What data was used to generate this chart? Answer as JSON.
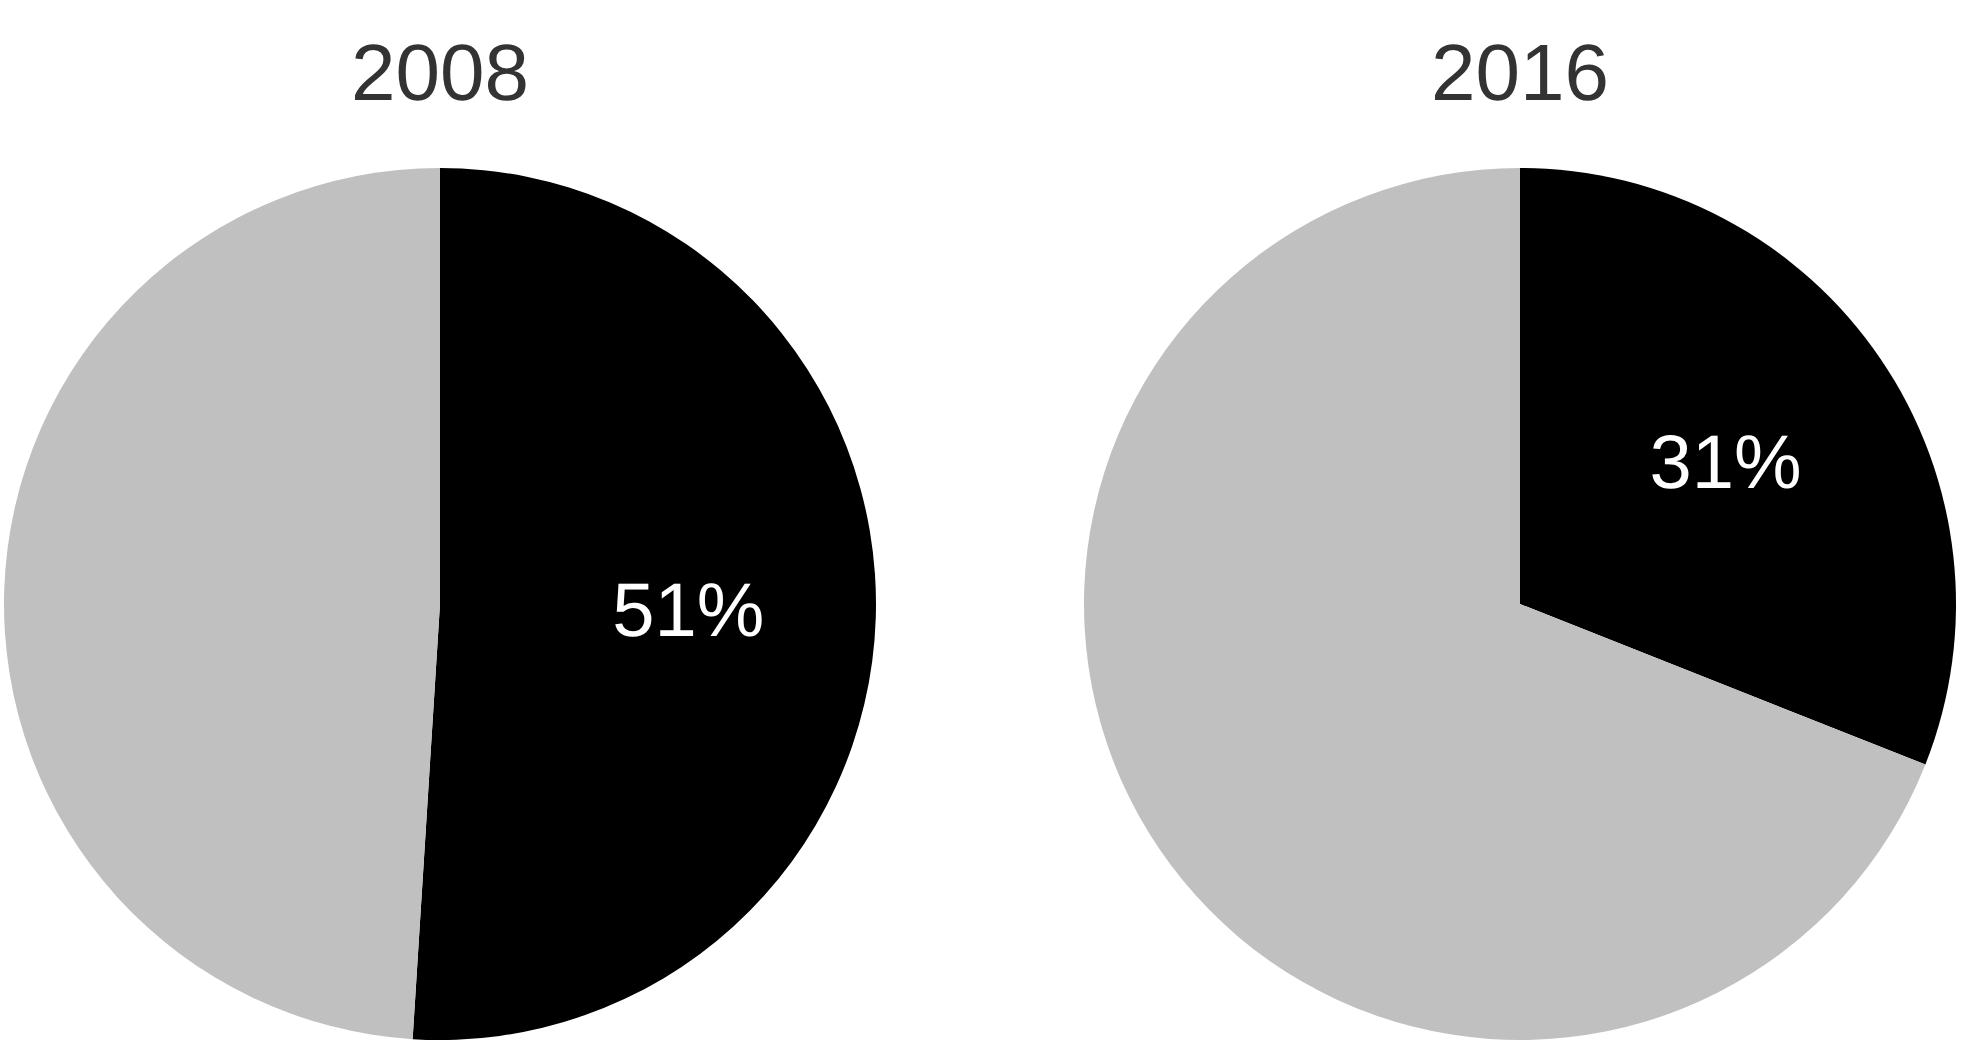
{
  "chart_data": [
    {
      "type": "pie",
      "title": "2008",
      "categories": [
        null,
        null
      ],
      "values": [
        51,
        49
      ],
      "colors": [
        "#000000",
        "#c0c0c0"
      ],
      "value_labels": [
        "51%",
        null
      ]
    },
    {
      "type": "pie",
      "title": "2016",
      "categories": [
        null,
        null
      ],
      "values": [
        31,
        69
      ],
      "colors": [
        "#000000",
        "#c0c0c0"
      ],
      "value_labels": [
        "31%",
        null
      ]
    }
  ]
}
